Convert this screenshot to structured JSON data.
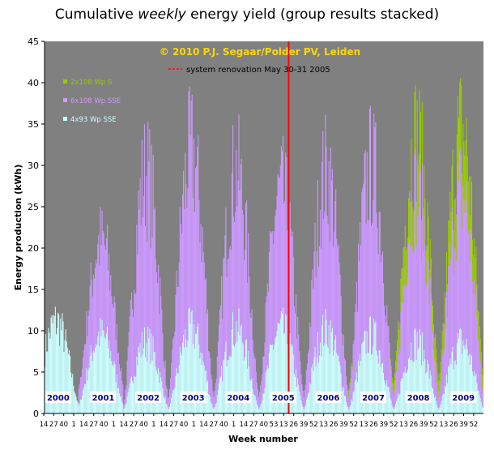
{
  "title_pre": "Cumulative ",
  "title_em": "weekly",
  "title_post": " energy yield (group results stacked)",
  "copyright": "© 2010 P.J. Segaar/Polder PV, Leiden",
  "renovation_label": "system renovation May 30-31 2005",
  "colors": {
    "plot_bg": "#808080",
    "s_2x108": "#99cc00",
    "sse_6x108": "#cc99ff",
    "sse_4x93": "#ccffff",
    "renovation": "#ff0000"
  },
  "chart_data": {
    "type": "area",
    "title": "Cumulative weekly energy yield (group results stacked)",
    "xlabel": "Week number",
    "ylabel": "Energy production (kWh)",
    "ylim": [
      0,
      45
    ],
    "ytick_step": 5,
    "grid": false,
    "legend_placement": "top-left",
    "x_tick_labels": [
      "14",
      "27",
      "40",
      "1",
      "14",
      "27",
      "40",
      "1",
      "14",
      "27",
      "40",
      "1",
      "14",
      "27",
      "40",
      "1",
      "14",
      "27",
      "40",
      "1",
      "14",
      "27",
      "40",
      "53",
      "13",
      "26",
      "39",
      "52",
      "13",
      "26",
      "39",
      "52",
      "13",
      "26",
      "39",
      "52",
      "13",
      "26",
      "39",
      "52",
      "13",
      "26",
      "39",
      "52"
    ],
    "years": [
      "2000",
      "2001",
      "2002",
      "2003",
      "2004",
      "2005",
      "2006",
      "2007",
      "2008",
      "2009"
    ],
    "renovation_week_index": 282,
    "series": [
      {
        "name": "2x108 Wp S",
        "note": "starts 2007, stacked on top",
        "peak_weekly_totals_by_year": {
          "2007": 33,
          "2008": 42,
          "2009": 43
        },
        "winter_min_totals_by_year": {
          "2007": 3,
          "2008": 4,
          "2009": 4
        }
      },
      {
        "name": "6x108 Wp SSE",
        "note": "starts 2001",
        "peak_weekly_totals_by_year": {
          "2001": 26,
          "2002": 37,
          "2003": 40,
          "2004": 37,
          "2005": 34,
          "2006": 37,
          "2007": 38,
          "2008": 34,
          "2009": 34
        },
        "winter_min_totals_by_year": {
          "2001": 3,
          "2002": 1,
          "2003": 2,
          "2004": 2,
          "2005": 2,
          "2006": 2,
          "2007": 2,
          "2008": 2,
          "2009": 2
        }
      },
      {
        "name": "4x93 Wp SSE",
        "note": "starts week 14 of 2000",
        "peak_weekly_values_by_year": {
          "2000": 14,
          "2001": 12,
          "2002": 11,
          "2003": 13,
          "2004": 13,
          "2005": 13,
          "2006": 13,
          "2007": 12,
          "2008": 11,
          "2009": 11
        },
        "winter_min_values_by_year": {
          "2000": 1,
          "2001": 1,
          "2002": 0.5,
          "2003": 0.5,
          "2004": 0.5,
          "2005": 0.5,
          "2006": 0.5,
          "2007": 0.5,
          "2008": 0.5,
          "2009": 0.5
        }
      }
    ]
  }
}
